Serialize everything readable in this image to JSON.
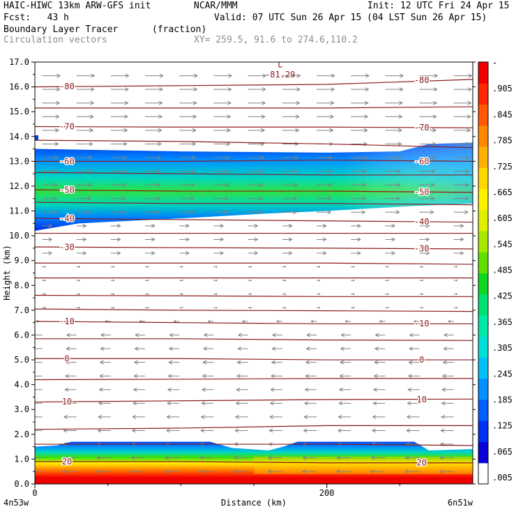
{
  "header": {
    "model": "HAIC-HIWC 13km ARW-GFS init",
    "org": "NCAR/MMM",
    "init": "Init: 12 UTC Fri 24 Apr 15",
    "fcst": "Fcst:   43 h",
    "valid": "Valid: 07 UTC Sun 26 Apr 15 (04 LST Sun 26 Apr 15)",
    "field": "Boundary Layer Tracer",
    "units": "(fraction)",
    "vectors": "Circulation vectors",
    "xy": "XY= 259.5, 91.6 to 274.6,110.2"
  },
  "colors": {
    "contour": "#8b1a1a",
    "vector": "#808080",
    "scale": [
      "#ffffff",
      "#0a00d8",
      "#0030f0",
      "#0060ff",
      "#0090ff",
      "#00c0f8",
      "#00e0d8",
      "#00e8a8",
      "#00e070",
      "#10d820",
      "#60e000",
      "#a8e800",
      "#e0f000",
      "#fff000",
      "#ffd800",
      "#ffb000",
      "#ff8800",
      "#ff5800",
      "#ff2800",
      "#f00000"
    ]
  },
  "chart_data": {
    "type": "contour",
    "xlabel": "Distance (km)",
    "ylabel": "Height (km)",
    "xlim": [
      0,
      300
    ],
    "ylim": [
      0.0,
      17.0
    ],
    "x_ticks": [
      0,
      200
    ],
    "y_ticks": [
      "0.0",
      "1.0",
      "2.0",
      "3.0",
      "4.0",
      "5.0",
      "6.0",
      "7.0",
      "8.0",
      "9.0",
      "10.0",
      "11.0",
      "12.0",
      "13.0",
      "14.0",
      "15.0",
      "16.0",
      "17.0"
    ],
    "endpoints": {
      "left": "4n53w",
      "right": "6n51w"
    },
    "colorbar_labels": [
      "-",
      ".905",
      ".845",
      ".785",
      ".725",
      ".665",
      ".605",
      ".545",
      ".485",
      ".425",
      ".365",
      ".305",
      ".245",
      ".185",
      ".125",
      ".065",
      ".005"
    ],
    "temperature_contours": [
      {
        "label": "-80",
        "values": [
          16.0,
          16.05,
          16.1,
          16.3
        ]
      },
      {
        "label": "",
        "values": [
          15.15,
          15.15,
          15.15,
          15.2
        ]
      },
      {
        "label": "-70",
        "values": [
          14.4,
          14.38,
          14.38,
          14.35
        ]
      },
      {
        "label": "",
        "values": [
          13.85,
          13.8,
          13.7,
          13.55
        ]
      },
      {
        "label": "-60",
        "values": [
          13.0,
          13.0,
          13.05,
          13.0
        ]
      },
      {
        "label": "",
        "values": [
          12.55,
          12.5,
          12.45,
          12.45
        ]
      },
      {
        "label": "-50",
        "values": [
          11.85,
          11.8,
          11.8,
          11.75
        ]
      },
      {
        "label": "",
        "values": [
          11.35,
          11.3,
          11.3,
          11.25
        ]
      },
      {
        "label": "-40",
        "values": [
          10.7,
          10.65,
          10.6,
          10.55
        ]
      },
      {
        "label": "",
        "values": [
          10.1,
          10.1,
          10.1,
          10.1
        ]
      },
      {
        "label": "-30",
        "values": [
          9.55,
          9.52,
          9.5,
          9.47
        ]
      },
      {
        "label": "",
        "values": [
          8.9,
          8.9,
          8.9,
          8.85
        ]
      },
      {
        "label": "",
        "values": [
          8.3,
          8.3,
          8.3,
          8.3
        ]
      },
      {
        "label": "",
        "values": [
          7.6,
          7.58,
          7.55,
          7.55
        ]
      },
      {
        "label": "",
        "values": [
          7.05,
          7.0,
          6.98,
          6.95
        ]
      },
      {
        "label": "-10",
        "values": [
          6.55,
          6.5,
          6.45,
          6.45
        ]
      },
      {
        "label": "",
        "values": [
          5.85,
          5.85,
          5.8,
          5.78
        ]
      },
      {
        "label": "0",
        "values": [
          5.05,
          5.05,
          5.0,
          5.0
        ]
      },
      {
        "label": "",
        "values": [
          4.2,
          4.22,
          4.25,
          4.25
        ]
      },
      {
        "label": "10",
        "values": [
          3.3,
          3.35,
          3.4,
          3.42
        ]
      },
      {
        "label": "",
        "values": [
          2.2,
          2.25,
          2.35,
          2.35
        ]
      },
      {
        "label": "",
        "values": [
          1.6,
          1.6,
          1.6,
          1.55
        ]
      },
      {
        "label": "20",
        "values": [
          0.9,
          0.9,
          0.85,
          0.85
        ]
      }
    ],
    "contour_x": [
      0,
      100,
      200,
      300
    ],
    "annotations": [
      {
        "text": "L",
        "x": 168,
        "y": 16.9
      },
      {
        "text": "-81.29",
        "x": 168,
        "y": 16.5
      }
    ]
  }
}
